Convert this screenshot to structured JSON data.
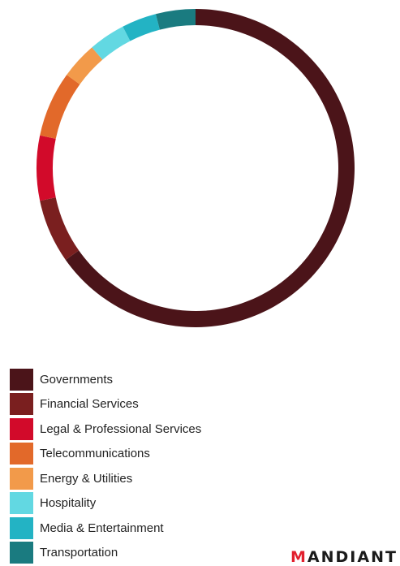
{
  "chart_data": {
    "type": "pie",
    "categories": [
      "Governments",
      "Financial Services",
      "Legal & Professional Services",
      "Telecommunications",
      "Energy & Utilities",
      "Hospitality",
      "Media & Entertainment",
      "Transportation"
    ],
    "values": [
      66.4,
      6.6,
      6.7,
      6.8,
      3.8,
      3.8,
      3.6,
      4.1
    ],
    "colors": [
      "#4b1419",
      "#7a1f1f",
      "#d20a2a",
      "#e2692a",
      "#f29a4a",
      "#62d8e2",
      "#23b3c4",
      "#1a7b80"
    ],
    "start_angle_deg": 0,
    "direction": "clockwise",
    "style": "donut",
    "legend_position": "bottom-left"
  },
  "logo": {
    "text": "MANDIANT",
    "accent_color": "#e2202e"
  }
}
